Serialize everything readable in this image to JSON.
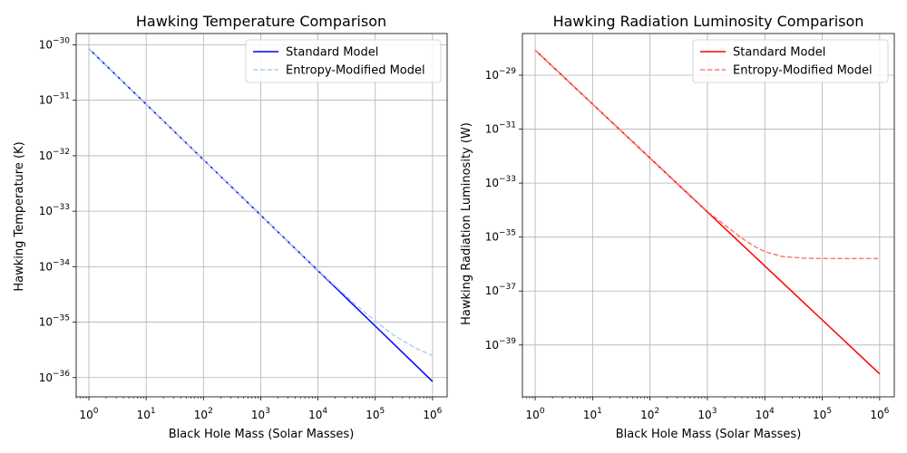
{
  "chart_data": [
    {
      "type": "line",
      "title": "Hawking Temperature Comparison",
      "xlabel": "Black Hole Mass (Solar Masses)",
      "ylabel": "Hawking Temperature (K)",
      "xscale": "log",
      "yscale": "log",
      "xlim": [
        0.6,
        1800000.0
      ],
      "ylim": [
        4.5e-37,
        1.6e-30
      ],
      "xticks": [
        {
          "base": "10",
          "exp": "0",
          "value": 1
        },
        {
          "base": "10",
          "exp": "1",
          "value": 10
        },
        {
          "base": "10",
          "exp": "2",
          "value": 100
        },
        {
          "base": "10",
          "exp": "3",
          "value": 1000
        },
        {
          "base": "10",
          "exp": "4",
          "value": 10000
        },
        {
          "base": "10",
          "exp": "5",
          "value": 100000
        },
        {
          "base": "10",
          "exp": "6",
          "value": 1000000
        }
      ],
      "yticks": [
        {
          "base": "10",
          "exp": "−36",
          "value": 1e-36
        },
        {
          "base": "10",
          "exp": "−35",
          "value": 1e-35
        },
        {
          "base": "10",
          "exp": "−34",
          "value": 1e-34
        },
        {
          "base": "10",
          "exp": "−33",
          "value": 1e-33
        },
        {
          "base": "10",
          "exp": "−32",
          "value": 1e-32
        },
        {
          "base": "10",
          "exp": "−31",
          "value": 1e-31
        },
        {
          "base": "10",
          "exp": "−30",
          "value": 1e-30
        }
      ],
      "grid": true,
      "legend_position": "top-right",
      "series": [
        {
          "name": "Standard Model",
          "color": "#0000ff",
          "dash": "solid",
          "x": [
            1,
            10,
            100,
            1000,
            10000,
            100000,
            1000000
          ],
          "y": [
            8.5e-31,
            8.5e-32,
            8.5e-33,
            8.5e-34,
            8.5e-35,
            8.5e-36,
            8.5e-37
          ]
        },
        {
          "name": "Entropy-Modified Model",
          "color": "#aed1ee",
          "dash": "dashed",
          "x": [
            1,
            10,
            100,
            1000,
            10000,
            50000,
            100000,
            200000,
            500000,
            1000000
          ],
          "y": [
            8.5e-31,
            8.5e-32,
            8.5e-33,
            8.5e-34,
            8.6e-35,
            1.9e-35,
            1.05e-35,
            6e-36,
            3.4e-36,
            2.5e-36
          ]
        }
      ]
    },
    {
      "type": "line",
      "title": "Hawking Radiation Luminosity Comparison",
      "xlabel": "Black Hole Mass (Solar Masses)",
      "ylabel": "Hawking Radiation Luminosity (W)",
      "xscale": "log",
      "yscale": "log",
      "xlim": [
        0.6,
        1800000.0
      ],
      "ylim": [
        1.2e-41,
        3.5e-28
      ],
      "xticks": [
        {
          "base": "10",
          "exp": "0",
          "value": 1
        },
        {
          "base": "10",
          "exp": "1",
          "value": 10
        },
        {
          "base": "10",
          "exp": "2",
          "value": 100
        },
        {
          "base": "10",
          "exp": "3",
          "value": 1000
        },
        {
          "base": "10",
          "exp": "4",
          "value": 10000
        },
        {
          "base": "10",
          "exp": "5",
          "value": 100000
        },
        {
          "base": "10",
          "exp": "6",
          "value": 1000000
        }
      ],
      "yticks": [
        {
          "base": "10",
          "exp": "−39",
          "value": 1e-39
        },
        {
          "base": "10",
          "exp": "−37",
          "value": 1e-37
        },
        {
          "base": "10",
          "exp": "−35",
          "value": 1e-35
        },
        {
          "base": "10",
          "exp": "−33",
          "value": 1e-33
        },
        {
          "base": "10",
          "exp": "−31",
          "value": 1e-31
        },
        {
          "base": "10",
          "exp": "−29",
          "value": 1e-29
        }
      ],
      "grid": true,
      "legend_position": "top-right",
      "series": [
        {
          "name": "Standard Model",
          "color": "#ff0000",
          "dash": "solid",
          "x": [
            1,
            10,
            100,
            1000,
            10000,
            100000,
            1000000
          ],
          "y": [
            8.5e-29,
            8.5e-31,
            8.5e-33,
            8.5e-35,
            8.5e-37,
            8.5e-39,
            8.5e-41
          ]
        },
        {
          "name": "Entropy-Modified Model",
          "color": "#f08080",
          "dash": "dashed",
          "x": [
            1,
            10,
            100,
            1000,
            2000,
            4000,
            7000,
            10000,
            20000,
            50000,
            100000,
            1000000
          ],
          "y": [
            8.5e-29,
            8.5e-31,
            8.5e-33,
            9e-35,
            2.8e-35,
            9e-36,
            4.2e-36,
            2.9e-36,
            1.9e-36,
            1.65e-36,
            1.6e-36,
            1.6e-36
          ]
        }
      ]
    }
  ]
}
